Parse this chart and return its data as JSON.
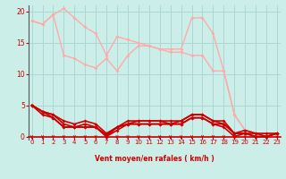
{
  "bg_color": "#cceee8",
  "grid_color": "#aad8d4",
  "line_color_dark": "#cc0000",
  "line_color_light": "#ff9999",
  "xlabel": "Vent moyen/en rafales ( km/h )",
  "xlabel_color": "#cc0000",
  "tick_color": "#cc0000",
  "ylim": [
    -0.5,
    21
  ],
  "xlim": [
    -0.3,
    23.3
  ],
  "yticks": [
    0,
    5,
    10,
    15,
    20
  ],
  "xticks": [
    0,
    1,
    2,
    3,
    4,
    5,
    6,
    7,
    8,
    9,
    10,
    11,
    12,
    13,
    14,
    15,
    16,
    17,
    18,
    19,
    20,
    21,
    22,
    23
  ],
  "series": [
    {
      "x": [
        0,
        1,
        2,
        3,
        4,
        5,
        6,
        7,
        8,
        9,
        10,
        11,
        12,
        13,
        14,
        15,
        16,
        17,
        18,
        19,
        20,
        21,
        22,
        23
      ],
      "y": [
        18.5,
        18.0,
        19.5,
        20.5,
        19.0,
        17.5,
        16.5,
        13.0,
        16.0,
        15.5,
        15.0,
        14.5,
        14.0,
        13.5,
        13.5,
        13.0,
        13.0,
        10.5,
        10.5,
        3.5,
        1.0,
        0.5,
        0.5,
        0.5
      ],
      "color": "#ffaaaa",
      "lw": 1.0,
      "marker": "D",
      "ms": 2.0
    },
    {
      "x": [
        0,
        1,
        2,
        3,
        4,
        5,
        6,
        7,
        8,
        9,
        10,
        11,
        12,
        13,
        14,
        15,
        16,
        17,
        18,
        19,
        20,
        21,
        22,
        23
      ],
      "y": [
        18.5,
        18.0,
        19.5,
        13.0,
        12.5,
        11.5,
        11.0,
        12.5,
        10.5,
        13.0,
        14.5,
        14.5,
        14.0,
        14.0,
        14.0,
        19.0,
        19.0,
        16.5,
        10.5,
        3.5,
        1.0,
        0.5,
        0.5,
        0.5
      ],
      "color": "#ffaaaa",
      "lw": 1.0,
      "marker": "D",
      "ms": 2.0
    },
    {
      "x": [
        0,
        1,
        2,
        3,
        4,
        5,
        6,
        7,
        8,
        9,
        10,
        11,
        12,
        13,
        14,
        15,
        16,
        17,
        18,
        19,
        20,
        21,
        22,
        23
      ],
      "y": [
        5.0,
        4.0,
        3.5,
        2.5,
        2.0,
        2.5,
        2.0,
        0.5,
        1.5,
        2.5,
        2.5,
        2.5,
        2.5,
        2.5,
        2.5,
        3.5,
        3.5,
        2.5,
        2.5,
        0.5,
        1.0,
        0.5,
        0.5,
        0.5
      ],
      "color": "#cc0000",
      "lw": 1.2,
      "marker": "D",
      "ms": 2.0
    },
    {
      "x": [
        0,
        1,
        2,
        3,
        4,
        5,
        6,
        7,
        8,
        9,
        10,
        11,
        12,
        13,
        14,
        15,
        16,
        17,
        18,
        19,
        20,
        21,
        22,
        23
      ],
      "y": [
        5.0,
        4.0,
        3.5,
        2.0,
        1.5,
        2.0,
        1.5,
        0.3,
        1.5,
        2.0,
        2.5,
        2.5,
        2.5,
        2.0,
        2.5,
        3.5,
        3.5,
        2.5,
        2.0,
        0.5,
        0.5,
        0.5,
        0.0,
        0.5
      ],
      "color": "#cc0000",
      "lw": 1.2,
      "marker": "D",
      "ms": 2.0
    },
    {
      "x": [
        0,
        1,
        2,
        3,
        4,
        5,
        6,
        7,
        8,
        9,
        10,
        11,
        12,
        13,
        14,
        15,
        16,
        17,
        18,
        19,
        20,
        21,
        22,
        23
      ],
      "y": [
        5.0,
        4.0,
        3.0,
        1.5,
        1.5,
        1.5,
        1.5,
        0.0,
        1.5,
        2.0,
        2.0,
        2.0,
        2.0,
        2.0,
        2.0,
        3.0,
        3.0,
        2.0,
        2.0,
        0.5,
        0.5,
        0.0,
        0.0,
        0.5
      ],
      "color": "#cc0000",
      "lw": 1.2,
      "marker": "D",
      "ms": 2.0
    },
    {
      "x": [
        0,
        1,
        2,
        3,
        4,
        5,
        6,
        7,
        8,
        9,
        10,
        11,
        12,
        13,
        14,
        15,
        16,
        17,
        18,
        19,
        20,
        21,
        22,
        23
      ],
      "y": [
        5.0,
        3.5,
        3.0,
        1.5,
        1.5,
        1.5,
        1.5,
        0.0,
        1.0,
        2.0,
        2.0,
        2.0,
        2.0,
        2.0,
        2.0,
        3.0,
        3.0,
        2.0,
        1.5,
        0.0,
        0.5,
        0.0,
        0.0,
        0.5
      ],
      "color": "#cc0000",
      "lw": 1.2,
      "marker": "D",
      "ms": 2.0
    }
  ]
}
